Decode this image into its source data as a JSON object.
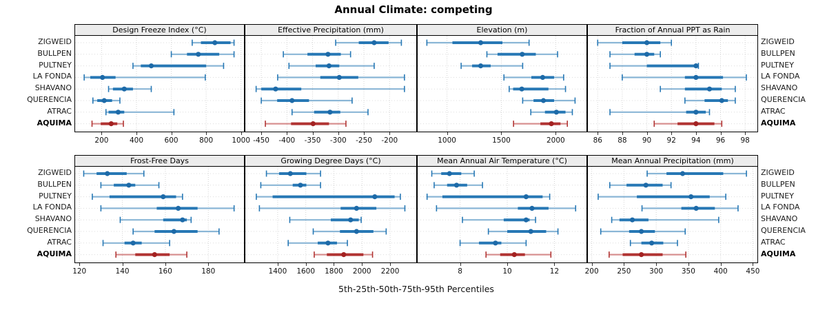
{
  "page_title": "Annual Climate: competing",
  "caption": "5th-25th-50th-75th-95th Percentiles",
  "sites": [
    "ZIGWEID",
    "BULLPEN",
    "PULTNEY",
    "LA FONDA",
    "SHAVANO",
    "QUERENCIA",
    "ATRAC",
    "AQUIMA"
  ],
  "highlight_site": "AQUIMA",
  "percentile_labels": [
    "5th",
    "25th",
    "50th",
    "75th",
    "95th"
  ],
  "colors": {
    "series_blue": "#2778b5",
    "series_blue_light": "#8ab6d6",
    "series_blue_dot": "#1d6aa8",
    "highlight_red": "#b13433",
    "highlight_red_light": "#d79090",
    "highlight_red_dot": "#a32222",
    "strip_background": "#ececec",
    "panel_border": "#000000",
    "grid_line": "#d3d3d3",
    "row_guide": "#dcdcdc"
  },
  "chart_data": [
    {
      "type": "dot-whisker percentiles",
      "title": "Design Freeze Index (°C)",
      "grid_position": {
        "row": 0,
        "col": 0
      },
      "x_ticks": [
        200,
        400,
        600,
        800,
        1000
      ],
      "x_domain": [
        48,
        1017
      ],
      "series": [
        {
          "site": "ZIGWEID",
          "values": [
            720,
            770,
            850,
            940,
            960
          ]
        },
        {
          "site": "BULLPEN",
          "values": [
            600,
            690,
            755,
            875,
            960
          ]
        },
        {
          "site": "PULTNEY",
          "values": [
            380,
            425,
            485,
            800,
            900
          ]
        },
        {
          "site": "LA FONDA",
          "values": [
            100,
            135,
            205,
            280,
            795
          ]
        },
        {
          "site": "SHAVANO",
          "values": [
            240,
            265,
            330,
            380,
            485
          ]
        },
        {
          "site": "QUERENCIA",
          "values": [
            150,
            175,
            215,
            260,
            305
          ]
        },
        {
          "site": "ATRAC",
          "values": [
            225,
            240,
            295,
            330,
            615
          ]
        },
        {
          "site": "AQUIMA",
          "values": [
            145,
            195,
            255,
            290,
            325
          ]
        }
      ]
    },
    {
      "type": "dot-whisker percentiles",
      "title": "Effective Precipitation (mm)",
      "grid_position": {
        "row": 0,
        "col": 1
      },
      "x_ticks": [
        -450,
        -400,
        -350,
        -300,
        -250,
        -200
      ],
      "x_domain": [
        -481,
        -148
      ],
      "series": [
        {
          "site": "ZIGWEID",
          "values": [
            -305,
            -260,
            -230,
            -202,
            -177
          ]
        },
        {
          "site": "BULLPEN",
          "values": [
            -407,
            -360,
            -320,
            -295,
            -276
          ]
        },
        {
          "site": "PULTNEY",
          "values": [
            -396,
            -344,
            -318,
            -298,
            -230
          ]
        },
        {
          "site": "LA FONDA",
          "values": [
            -418,
            -335,
            -298,
            -261,
            -171
          ]
        },
        {
          "site": "SHAVANO",
          "values": [
            -460,
            -450,
            -422,
            -372,
            -171
          ]
        },
        {
          "site": "QUERENCIA",
          "values": [
            -450,
            -419,
            -390,
            -357,
            -273
          ]
        },
        {
          "site": "ATRAC",
          "values": [
            -390,
            -347,
            -316,
            -296,
            -242
          ]
        },
        {
          "site": "AQUIMA",
          "values": [
            -442,
            -392,
            -349,
            -318,
            -285
          ]
        }
      ]
    },
    {
      "type": "dot-whisker percentiles",
      "title": "Elevation (m)",
      "grid_position": {
        "row": 0,
        "col": 2
      },
      "x_ticks": [
        1000,
        1500,
        2000
      ],
      "x_domain": [
        730,
        2283
      ],
      "series": [
        {
          "site": "ZIGWEID",
          "values": [
            815,
            1050,
            1310,
            1510,
            1755
          ]
        },
        {
          "site": "BULLPEN",
          "values": [
            1367,
            1465,
            1692,
            1817,
            2017
          ]
        },
        {
          "site": "PULTNEY",
          "values": [
            1130,
            1231,
            1310,
            1402,
            1696
          ]
        },
        {
          "site": "LA FONDA",
          "values": [
            1524,
            1776,
            1880,
            1985,
            2073
          ]
        },
        {
          "site": "SHAVANO",
          "values": [
            1572,
            1608,
            1688,
            1933,
            2090
          ]
        },
        {
          "site": "QUERENCIA",
          "values": [
            1696,
            1796,
            1887,
            1985,
            2178
          ]
        },
        {
          "site": "ATRAC",
          "values": [
            1771,
            1901,
            2006,
            2090,
            2153
          ]
        },
        {
          "site": "AQUIMA",
          "values": [
            1612,
            1859,
            1960,
            2044,
            2107
          ]
        }
      ]
    },
    {
      "type": "dot-whisker percentiles",
      "title": "Fraction of Annual PPT as Rain",
      "grid_position": {
        "row": 0,
        "col": 3
      },
      "x_ticks": [
        86,
        88,
        90,
        92,
        94,
        96,
        98
      ],
      "x_domain": [
        85.2,
        99.0
      ],
      "series": [
        {
          "site": "ZIGWEID",
          "values": [
            86.0,
            88.0,
            90.0,
            91.1,
            92.0
          ]
        },
        {
          "site": "BULLPEN",
          "values": [
            87.0,
            89.0,
            90.0,
            90.6,
            91.1
          ]
        },
        {
          "site": "PULTNEY",
          "values": [
            87.0,
            90.0,
            94.0,
            94.1,
            94.2
          ]
        },
        {
          "site": "LA FONDA",
          "values": [
            88.0,
            93.1,
            94.0,
            96.2,
            98.1
          ]
        },
        {
          "site": "SHAVANO",
          "values": [
            91.1,
            93.1,
            95.1,
            96.1,
            97.2
          ]
        },
        {
          "site": "QUERENCIA",
          "values": [
            93.1,
            94.7,
            96.1,
            96.6,
            97.2
          ]
        },
        {
          "site": "ATRAC",
          "values": [
            87.0,
            93.2,
            94.0,
            94.8,
            95.1
          ]
        },
        {
          "site": "AQUIMA",
          "values": [
            90.6,
            92.5,
            94.0,
            95.5,
            96.1
          ]
        }
      ]
    },
    {
      "type": "dot-whisker percentiles",
      "title": "Frost-Free Days",
      "grid_position": {
        "row": 1,
        "col": 0
      },
      "x_ticks": [
        120,
        140,
        160,
        180
      ],
      "x_domain": [
        118,
        196.6
      ],
      "series": [
        {
          "site": "ZIGWEID",
          "values": [
            122,
            128,
            133,
            142,
            150
          ]
        },
        {
          "site": "BULLPEN",
          "values": [
            130,
            136,
            143,
            146,
            157
          ]
        },
        {
          "site": "PULTNEY",
          "values": [
            126,
            134,
            159,
            165,
            168
          ]
        },
        {
          "site": "LA FONDA",
          "values": [
            130,
            156,
            166,
            175,
            192
          ]
        },
        {
          "site": "SHAVANO",
          "values": [
            139,
            159,
            168,
            170,
            172
          ]
        },
        {
          "site": "QUERENCIA",
          "values": [
            145,
            155,
            164,
            175,
            185
          ]
        },
        {
          "site": "ATRAC",
          "values": [
            131,
            141,
            145,
            149,
            162
          ]
        },
        {
          "site": "AQUIMA",
          "values": [
            137,
            146,
            155,
            162,
            170
          ]
        }
      ]
    },
    {
      "type": "dot-whisker percentiles",
      "title": "Growing Degree Days (°C)",
      "grid_position": {
        "row": 1,
        "col": 1
      },
      "x_ticks": [
        1400,
        1600,
        1800,
        2000,
        2200
      ],
      "x_domain": [
        1170,
        2386
      ],
      "series": [
        {
          "site": "ZIGWEID",
          "values": [
            1320,
            1410,
            1490,
            1604,
            1705
          ]
        },
        {
          "site": "BULLPEN",
          "values": [
            1280,
            1507,
            1562,
            1604,
            1705
          ]
        },
        {
          "site": "PULTNEY",
          "values": [
            1248,
            1364,
            2091,
            2232,
            2273
          ]
        },
        {
          "site": "LA FONDA",
          "values": [
            1270,
            1848,
            1961,
            2102,
            2305
          ]
        },
        {
          "site": "SHAVANO",
          "values": [
            1486,
            1778,
            1919,
            1977,
            1994
          ]
        },
        {
          "site": "QUERENCIA",
          "values": [
            1653,
            1843,
            1961,
            2081,
            2172
          ]
        },
        {
          "site": "ATRAC",
          "values": [
            1475,
            1685,
            1758,
            1822,
            1896
          ]
        },
        {
          "site": "AQUIMA",
          "values": [
            1660,
            1750,
            1870,
            2010,
            2075
          ]
        }
      ]
    },
    {
      "type": "dot-whisker percentiles",
      "title": "Mean Annual Air Temperature (°C)",
      "grid_position": {
        "row": 1,
        "col": 2
      },
      "x_ticks": [
        8,
        10,
        12
      ],
      "x_domain": [
        6.2,
        13.36
      ],
      "series": [
        {
          "site": "ZIGWEID",
          "values": [
            6.8,
            7.2,
            7.55,
            8.05,
            8.6
          ]
        },
        {
          "site": "BULLPEN",
          "values": [
            6.9,
            7.45,
            7.85,
            8.3,
            8.95
          ]
        },
        {
          "site": "PULTNEY",
          "values": [
            6.6,
            7.25,
            10.8,
            11.5,
            11.8
          ]
        },
        {
          "site": "LA FONDA",
          "values": [
            7.0,
            10.45,
            11.05,
            11.75,
            12.9
          ]
        },
        {
          "site": "SHAVANO",
          "values": [
            8.1,
            9.85,
            10.8,
            10.95,
            11.2
          ]
        },
        {
          "site": "QUERENCIA",
          "values": [
            9.2,
            10.0,
            11.0,
            11.65,
            12.15
          ]
        },
        {
          "site": "ATRAC",
          "values": [
            8.0,
            8.8,
            9.5,
            9.75,
            10.8
          ]
        },
        {
          "site": "AQUIMA",
          "values": [
            9.1,
            9.7,
            10.3,
            10.75,
            11.85
          ]
        }
      ]
    },
    {
      "type": "dot-whisker percentiles",
      "title": "Mean Annual Precipitation (mm)",
      "grid_position": {
        "row": 1,
        "col": 3
      },
      "x_ticks": [
        200,
        250,
        300,
        350,
        400,
        450
      ],
      "x_domain": [
        194,
        457
      ],
      "series": [
        {
          "site": "ZIGWEID",
          "values": [
            286,
            316,
            341,
            404,
            440
          ]
        },
        {
          "site": "BULLPEN",
          "values": [
            228,
            254,
            284,
            310,
            323
          ]
        },
        {
          "site": "PULTNEY",
          "values": [
            210,
            270,
            354,
            383,
            408
          ]
        },
        {
          "site": "LA FONDA",
          "values": [
            278,
            339,
            362,
            391,
            427
          ]
        },
        {
          "site": "SHAVANO",
          "values": [
            231,
            243,
            263,
            288,
            397
          ]
        },
        {
          "site": "QUERENCIA",
          "values": [
            214,
            258,
            277,
            298,
            345
          ]
        },
        {
          "site": "ATRAC",
          "values": [
            260,
            277,
            293,
            311,
            333
          ]
        },
        {
          "site": "AQUIMA",
          "values": [
            227,
            248,
            277,
            310,
            346
          ]
        }
      ]
    }
  ]
}
